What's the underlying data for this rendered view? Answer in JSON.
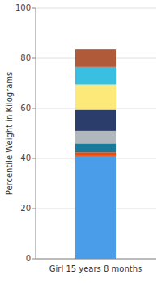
{
  "chart_data": {
    "type": "bar",
    "stacked": true,
    "categories": [
      "Girl 15 years 8 months"
    ],
    "series": [
      {
        "color": "#4a9de8",
        "values": [
          41
        ]
      },
      {
        "color": "#e84e0f",
        "values": [
          1.5
        ]
      },
      {
        "color": "#1a7a9a",
        "values": [
          3.5
        ]
      },
      {
        "color": "#b0b8be",
        "values": [
          5
        ]
      },
      {
        "color": "#2b3d6b",
        "values": [
          8.5
        ]
      },
      {
        "color": "#fde87a",
        "values": [
          10
        ]
      },
      {
        "color": "#3bbfe0",
        "values": [
          7
        ]
      },
      {
        "color": "#b05a3a",
        "values": [
          7
        ]
      }
    ],
    "ylabel": "Percentile Weight in Kilograms",
    "ylim": [
      0,
      100
    ],
    "yticks": [
      0,
      20,
      40,
      60,
      80,
      100
    ],
    "grid": true
  }
}
